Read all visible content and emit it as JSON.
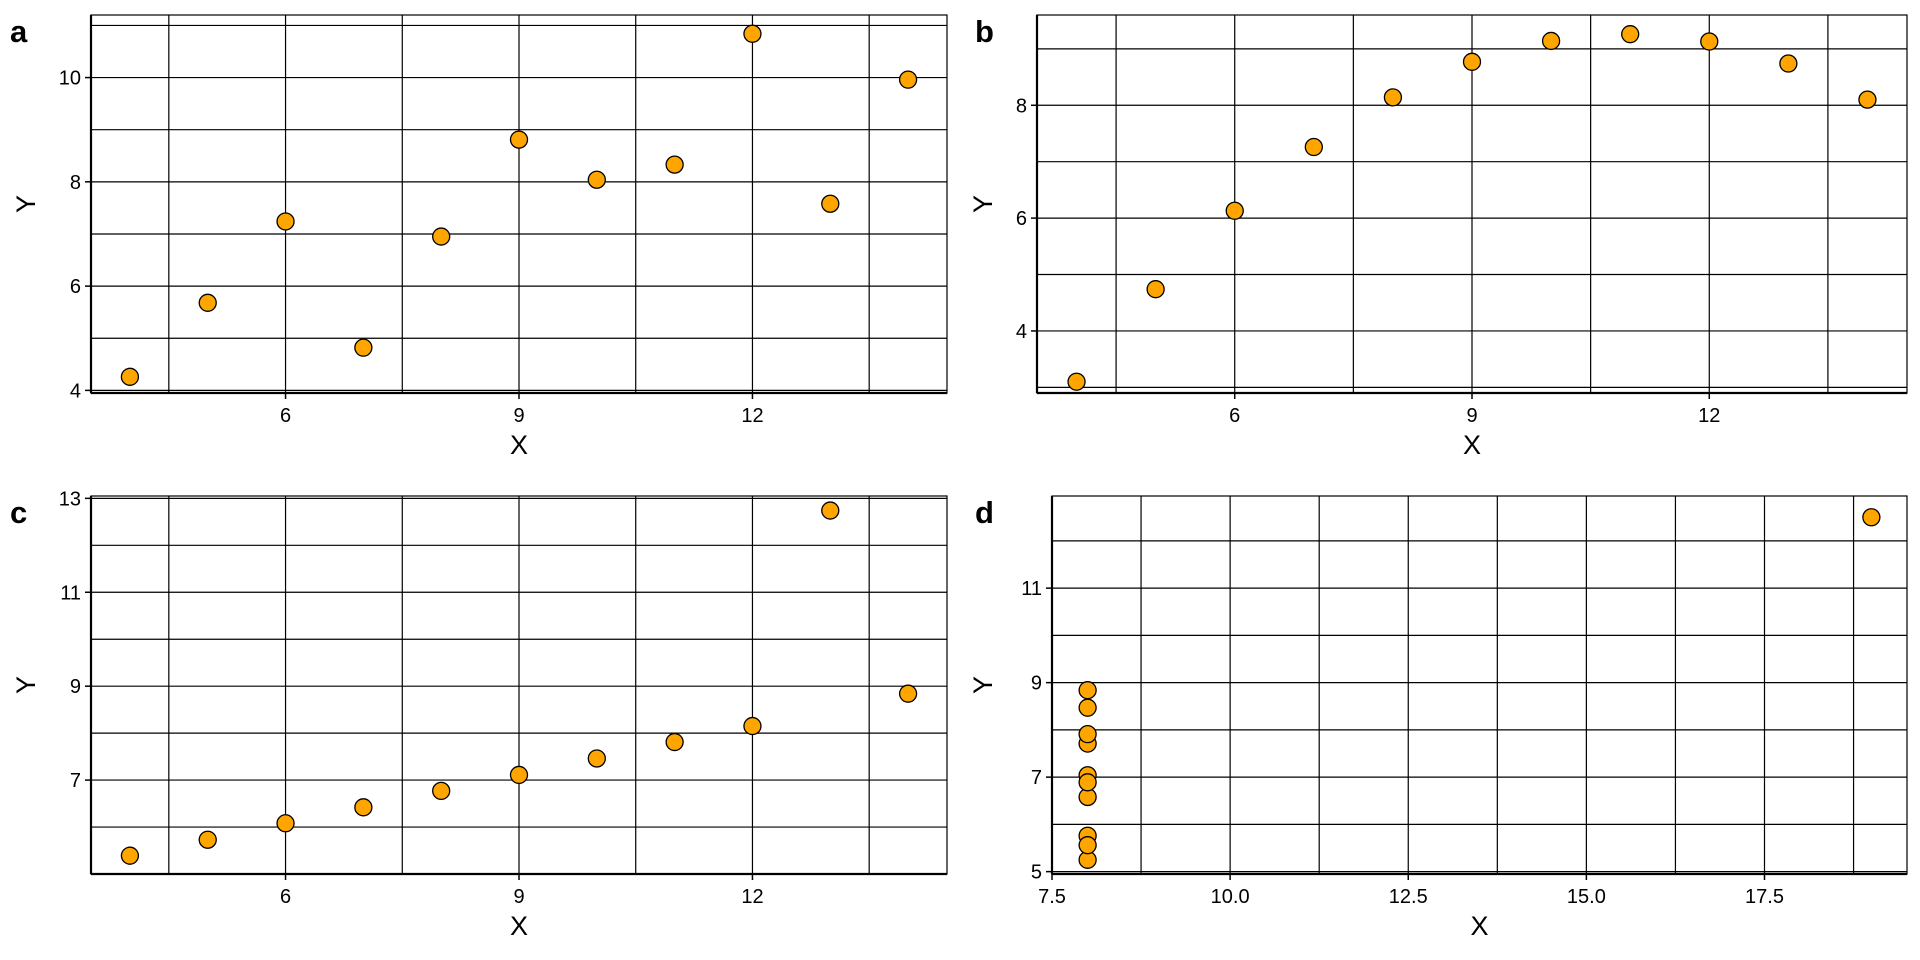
{
  "colors": {
    "point_fill": "#FFA500",
    "point_stroke": "#000000",
    "grid": "#000000",
    "background": "#FFFFFF"
  },
  "chart_data": [
    {
      "panel": "a",
      "type": "scatter",
      "xlabel": "X",
      "ylabel": "Y",
      "xlim": [
        3.5,
        14.5
      ],
      "ylim": [
        3.95,
        11.2
      ],
      "xticks": [
        6,
        9,
        12
      ],
      "yticks": [
        4,
        6,
        8,
        10
      ],
      "x_grid": [
        4.5,
        6,
        7.5,
        9,
        10.5,
        12,
        13.5
      ],
      "y_grid": [
        4,
        5,
        6,
        7,
        8,
        9,
        10,
        11
      ],
      "grid": true,
      "points": [
        {
          "x": 4,
          "y": 4.26
        },
        {
          "x": 5,
          "y": 5.68
        },
        {
          "x": 6,
          "y": 7.24
        },
        {
          "x": 7,
          "y": 4.82
        },
        {
          "x": 8,
          "y": 6.95
        },
        {
          "x": 9,
          "y": 8.81
        },
        {
          "x": 10,
          "y": 8.04
        },
        {
          "x": 11,
          "y": 8.33
        },
        {
          "x": 12,
          "y": 10.84
        },
        {
          "x": 13,
          "y": 7.58
        },
        {
          "x": 14,
          "y": 9.96
        }
      ]
    },
    {
      "panel": "b",
      "type": "scatter",
      "xlabel": "X",
      "ylabel": "Y",
      "xlim": [
        3.5,
        14.5
      ],
      "ylim": [
        2.9,
        9.6
      ],
      "xticks": [
        6,
        9,
        12
      ],
      "yticks": [
        4,
        6,
        8
      ],
      "x_grid": [
        4.5,
        6,
        7.5,
        9,
        10.5,
        12,
        13.5
      ],
      "y_grid": [
        3,
        4,
        5,
        6,
        7,
        8,
        9
      ],
      "grid": true,
      "points": [
        {
          "x": 4,
          "y": 3.1
        },
        {
          "x": 5,
          "y": 4.74
        },
        {
          "x": 6,
          "y": 6.13
        },
        {
          "x": 7,
          "y": 7.26
        },
        {
          "x": 8,
          "y": 8.14
        },
        {
          "x": 9,
          "y": 8.77
        },
        {
          "x": 10,
          "y": 9.14
        },
        {
          "x": 11,
          "y": 9.26
        },
        {
          "x": 12,
          "y": 9.13
        },
        {
          "x": 13,
          "y": 8.74
        },
        {
          "x": 14,
          "y": 8.1
        }
      ]
    },
    {
      "panel": "c",
      "type": "scatter",
      "xlabel": "X",
      "ylabel": "Y",
      "xlim": [
        3.5,
        14.5
      ],
      "ylim": [
        5.0,
        13.05
      ],
      "xticks": [
        6,
        9,
        12
      ],
      "yticks": [
        7,
        9,
        11,
        13
      ],
      "x_grid": [
        4.5,
        6,
        7.5,
        9,
        10.5,
        12,
        13.5
      ],
      "y_grid": [
        6,
        7,
        8,
        9,
        10,
        11,
        12,
        13
      ],
      "grid": true,
      "points": [
        {
          "x": 4,
          "y": 5.39
        },
        {
          "x": 5,
          "y": 5.73
        },
        {
          "x": 6,
          "y": 6.08
        },
        {
          "x": 7,
          "y": 6.42
        },
        {
          "x": 8,
          "y": 6.77
        },
        {
          "x": 9,
          "y": 7.11
        },
        {
          "x": 10,
          "y": 7.46
        },
        {
          "x": 11,
          "y": 7.81
        },
        {
          "x": 12,
          "y": 8.15
        },
        {
          "x": 13,
          "y": 12.74
        },
        {
          "x": 14,
          "y": 8.84
        }
      ]
    },
    {
      "panel": "d",
      "type": "scatter",
      "xlabel": "X",
      "ylabel": "Y",
      "xlim": [
        7.5,
        19.5
      ],
      "ylim": [
        4.95,
        12.95
      ],
      "xticks": [
        7.5,
        10.0,
        12.5,
        15.0,
        17.5
      ],
      "xtick_labels": [
        "7.5",
        "10.0",
        "12.5",
        "15.0",
        "17.5"
      ],
      "yticks": [
        5,
        7,
        9,
        11
      ],
      "x_grid": [
        8.75,
        10,
        11.25,
        12.5,
        13.75,
        15,
        16.25,
        17.5,
        18.75
      ],
      "y_grid": [
        5,
        6,
        7,
        8,
        9,
        10,
        11,
        12
      ],
      "grid": true,
      "points": [
        {
          "x": 8,
          "y": 6.58
        },
        {
          "x": 8,
          "y": 5.76
        },
        {
          "x": 8,
          "y": 7.71
        },
        {
          "x": 8,
          "y": 8.84
        },
        {
          "x": 8,
          "y": 8.47
        },
        {
          "x": 8,
          "y": 7.04
        },
        {
          "x": 8,
          "y": 5.25
        },
        {
          "x": 19,
          "y": 12.5
        },
        {
          "x": 8,
          "y": 5.56
        },
        {
          "x": 8,
          "y": 7.91
        },
        {
          "x": 8,
          "y": 6.89
        }
      ]
    }
  ]
}
